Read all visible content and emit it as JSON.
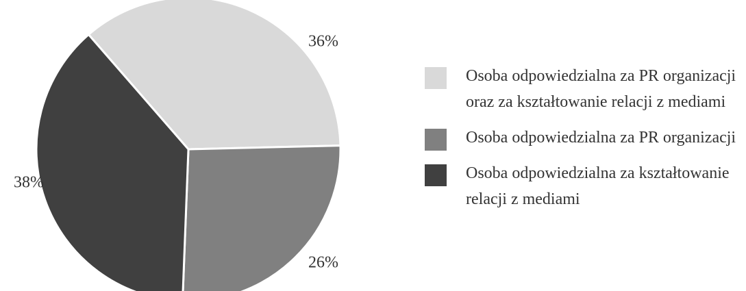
{
  "chart_data": {
    "type": "pie",
    "series": [
      {
        "name": "Osoba odpowiedzialna za PR organizacji oraz za kształtowanie relacji z mediami",
        "color": "#d9d9d9",
        "values": [
          36
        ]
      },
      {
        "name": "Osoba odpowiedzialna za PR organizacji",
        "color": "#808080",
        "values": [
          26
        ]
      },
      {
        "name": "Osoba odpowiedzialna za kształtowanie relacji z mediami",
        "color": "#404040",
        "values": [
          38
        ]
      }
    ],
    "value_labels": [
      "36%",
      "26%",
      "38%"
    ],
    "legend": "right"
  }
}
